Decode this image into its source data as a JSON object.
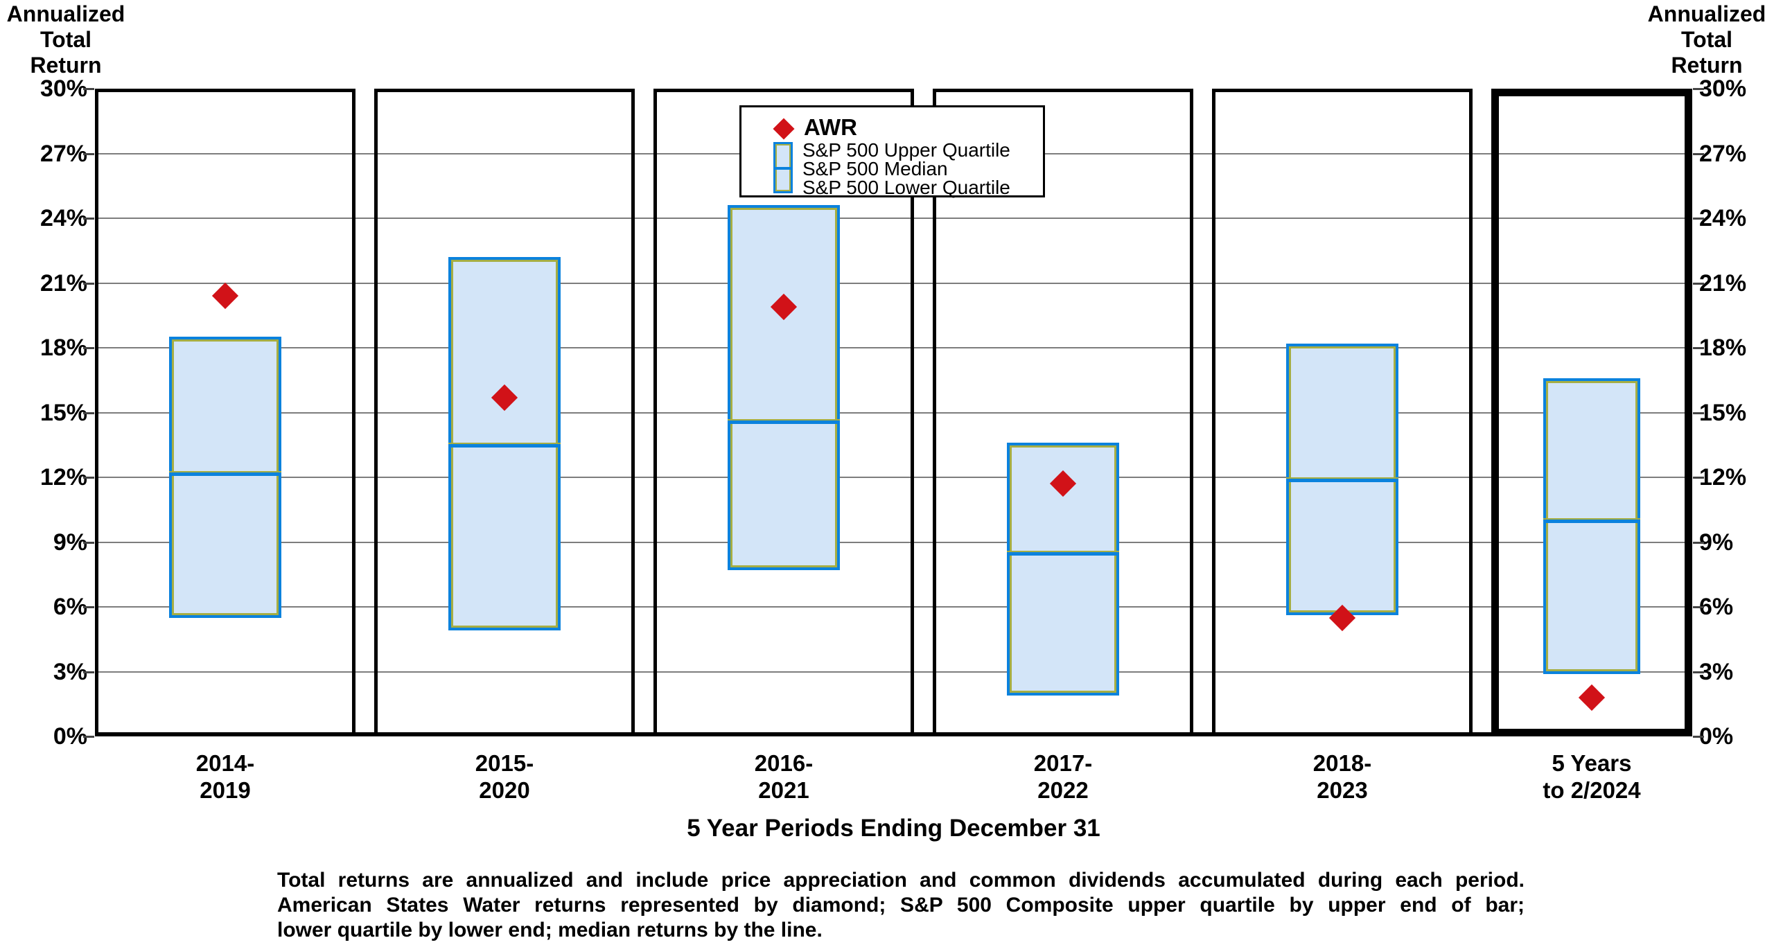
{
  "axis_title_left": "Annualized\nTotal\nReturn",
  "axis_title_right": "Annualized\nTotal\nReturn",
  "legend": {
    "awr_label": "AWR",
    "box_labels": [
      "S&P 500 Upper Quartile",
      "S&P 500 Median",
      "S&P 500 Lower Quartile"
    ]
  },
  "xlabel": "5 Year Periods Ending December 31",
  "footnote_lines": [
    "Total returns are annualized and include price appreciation and common dividends accumulated during each period.",
    "American States Water returns represented by diamond; S&P 500 Composite upper quartile by upper end of bar;",
    "lower quartile by lower end; median returns by the line."
  ],
  "colors": {
    "box_border_blue": "#0b82dd",
    "box_inner_olive": "#a6ae43",
    "box_fill": "#d3e5f8",
    "awr_diamond_red": "#d11218",
    "gridline_gray": "#7d7d7d",
    "axis_black": "#000000"
  },
  "chart_data": {
    "type": "bar",
    "subtype": "floating-quartile-box-with-diamond-marker",
    "title": "",
    "xlabel": "5 Year Periods Ending December 31",
    "ylabel": "Annualized Total Return",
    "ylim": [
      0,
      30
    ],
    "ytick_step": 3,
    "ytick_labels": [
      "0%",
      "3%",
      "6%",
      "9%",
      "12%",
      "15%",
      "18%",
      "21%",
      "24%",
      "27%",
      "30%"
    ],
    "grid": true,
    "legend_position": "top-center",
    "categories": [
      "2014-\n2019",
      "2015-\n2020",
      "2016-\n2021",
      "2017-\n2022",
      "2018-\n2023",
      "5 Years\nto  2/2024"
    ],
    "highlight_last_category": true,
    "series": [
      {
        "name": "AWR",
        "marker": "diamond",
        "values": [
          20.4,
          15.7,
          19.9,
          11.7,
          5.5,
          1.8
        ]
      },
      {
        "name": "S&P 500 Upper Quartile",
        "values": [
          18.5,
          22.2,
          24.6,
          13.6,
          18.2,
          16.6
        ]
      },
      {
        "name": "S&P 500 Median",
        "values": [
          12.2,
          13.5,
          14.6,
          8.5,
          11.9,
          10.0
        ]
      },
      {
        "name": "S&P 500 Lower Quartile",
        "values": [
          5.5,
          4.9,
          7.7,
          1.9,
          5.6,
          2.9
        ]
      }
    ]
  }
}
